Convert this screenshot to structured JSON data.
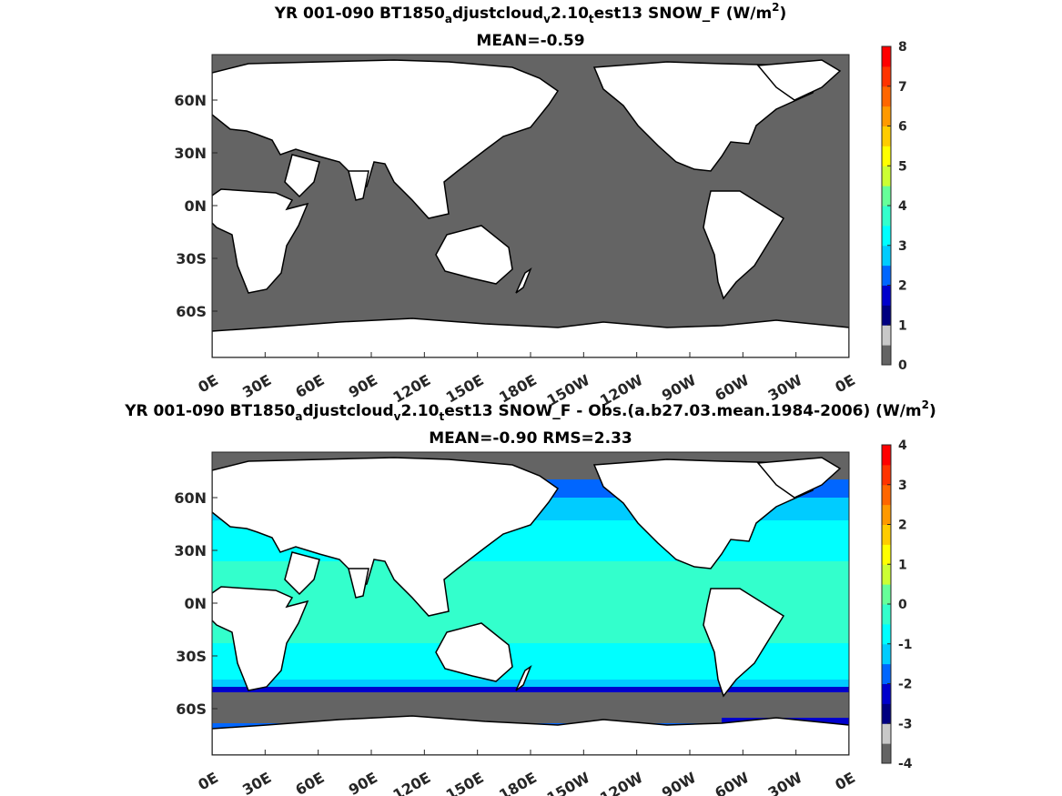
{
  "panel1": {
    "title_prefix": "YR 001-090 BT1850",
    "title_sub1": "a",
    "title_mid1": "djustcloud",
    "title_sub2": "v",
    "title_mid2": "2.10",
    "title_sub3": "t",
    "title_suffix": "est13  SNOW_F (W/m",
    "title_sup": "2",
    "title_close": ")",
    "subtitle": "MEAN=-0.59",
    "colorbar_ticks": [
      "0",
      "1",
      "2",
      "3",
      "4",
      "5",
      "6",
      "7",
      "8"
    ]
  },
  "panel2": {
    "title_prefix": "YR 001-090 BT1850",
    "title_sub1": "a",
    "title_mid1": "djustcloud",
    "title_sub2": "v",
    "title_mid2": "2.10",
    "title_sub3": "t",
    "title_suffix": "est13 SNOW_F - Obs.(a.b27.03.mean.1984-2006) (W/m",
    "title_sup": "2",
    "title_close": ")",
    "subtitle": "MEAN=-0.90 RMS=2.33",
    "colorbar_ticks": [
      "-4",
      "-3",
      "-2",
      "-1",
      "0",
      "1",
      "2",
      "3",
      "4"
    ]
  },
  "lat_ticks": [
    "60N",
    "30N",
    "0N",
    "30S",
    "60S"
  ],
  "lon_ticks": [
    "0E",
    "30E",
    "60E",
    "90E",
    "120E",
    "150E",
    "180E",
    "150W",
    "120W",
    "90W",
    "60W",
    "30W",
    "0E"
  ],
  "colors": {
    "ocean_zero": "#646464",
    "land": "#ffffff",
    "cyan": "#00ffff",
    "aqua": "#33ffcc",
    "light_blue": "#00ccff",
    "blue": "#0066ff",
    "dark_blue": "#0000cc",
    "navy": "#000080",
    "light_gray": "#c8c8c8",
    "cb_positive": [
      "#00ccff",
      "#00ffff",
      "#33ffcc",
      "#66ff99",
      "#ccff33",
      "#ffff00",
      "#ffcc00",
      "#ff9900",
      "#ff6600",
      "#ff3300",
      "#ff0000"
    ]
  }
}
